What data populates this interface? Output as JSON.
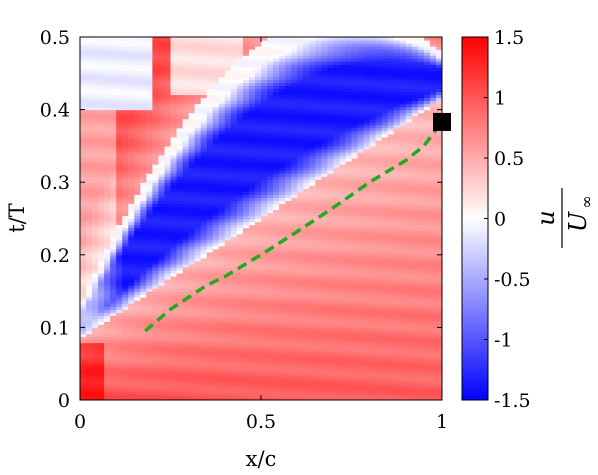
{
  "chart_data": {
    "type": "heatmap",
    "xlabel": "x/c",
    "ylabel": "t/T",
    "xlim": [
      0,
      1
    ],
    "ylim": [
      0,
      0.5
    ],
    "x_ticks": [
      "0",
      "0.5",
      "1"
    ],
    "y_ticks": [
      "0",
      "0.1",
      "0.2",
      "0.3",
      "0.4",
      "0.5"
    ],
    "colorbar": {
      "label_numerator": "u",
      "label_denominator": "U",
      "label_denominator_subscript": "∞",
      "range": [
        -1.5,
        1.5
      ],
      "ticks": [
        "1.5",
        "1",
        "0.5",
        "0",
        "-0.5",
        "-1",
        "-1.5"
      ],
      "colormap": [
        "#0000ff",
        "#ffffff",
        "#ff0000"
      ]
    },
    "field_description": "streamwise velocity contour; negative-velocity band from x/c≈0.1,t/T≈0.1 to x/c≈1,t/T≈0.5",
    "dashed_line": {
      "color": "#22aa22",
      "points": [
        [
          0.18,
          0.095
        ],
        [
          0.25,
          0.125
        ],
        [
          0.35,
          0.158
        ],
        [
          0.4,
          0.17
        ],
        [
          0.5,
          0.2
        ],
        [
          0.6,
          0.232
        ],
        [
          0.7,
          0.265
        ],
        [
          0.8,
          0.3
        ],
        [
          0.9,
          0.33
        ],
        [
          0.95,
          0.35
        ],
        [
          1.0,
          0.383
        ]
      ]
    },
    "marker": {
      "x": 1.0,
      "y": 0.383,
      "color": "#000000",
      "shape": "square"
    }
  }
}
